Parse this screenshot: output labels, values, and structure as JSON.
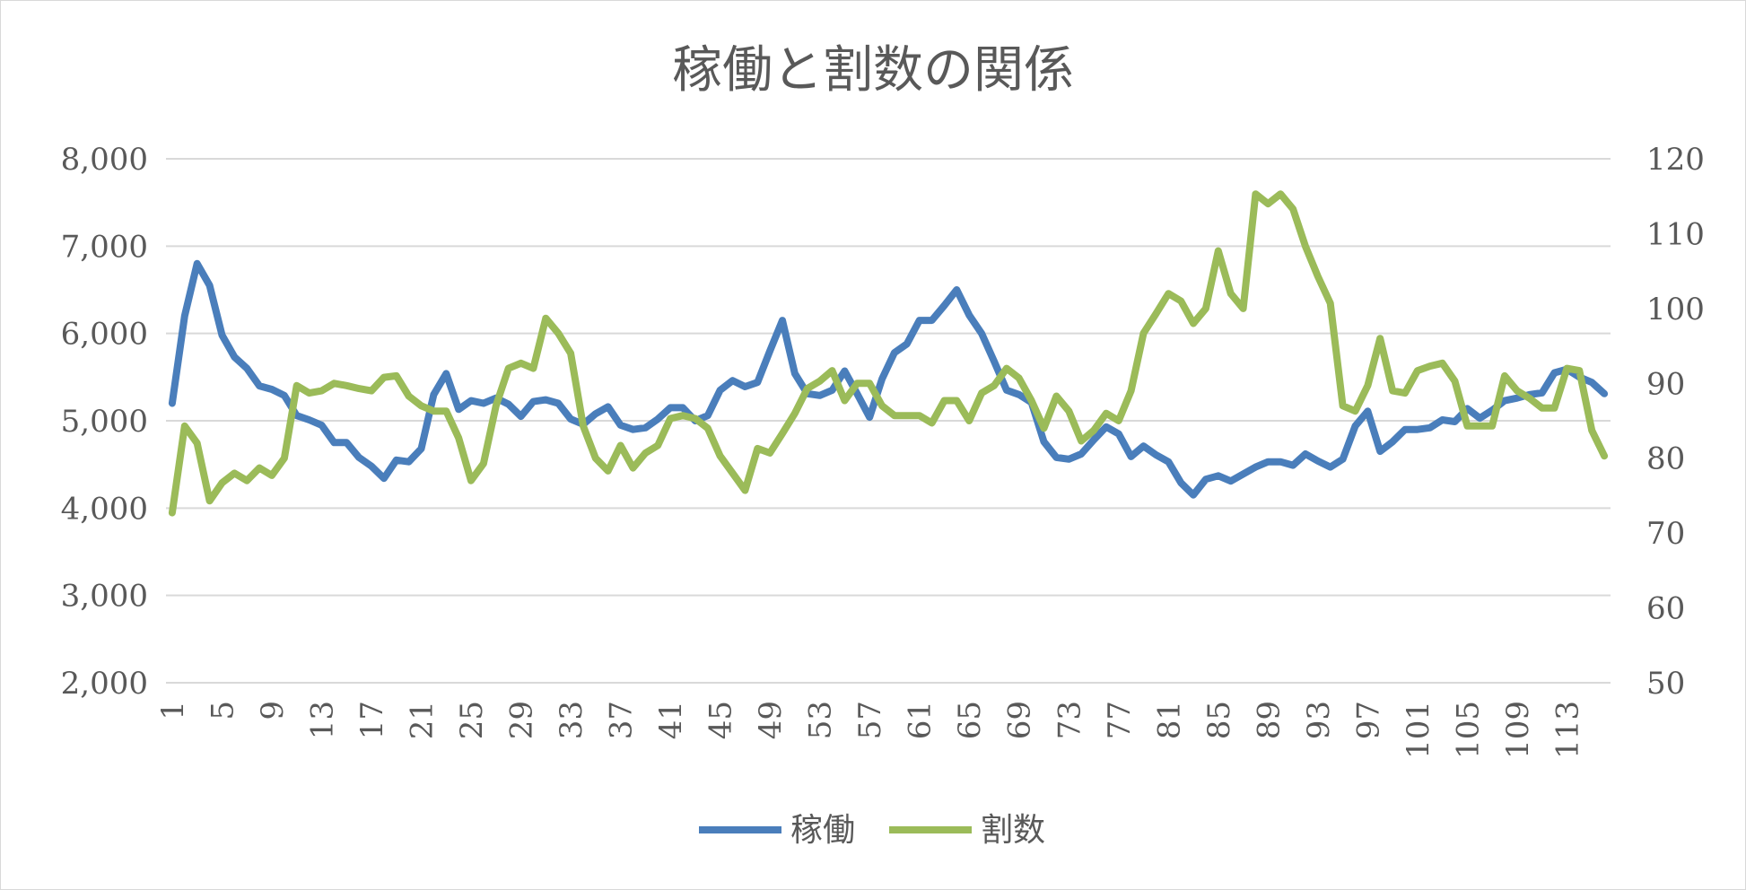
{
  "chart_data": {
    "type": "line",
    "title": "稼働と割数の関係",
    "x": [
      1,
      2,
      3,
      4,
      5,
      6,
      7,
      8,
      9,
      10,
      11,
      12,
      13,
      14,
      15,
      16,
      17,
      18,
      19,
      20,
      21,
      22,
      23,
      24,
      25,
      26,
      27,
      28,
      29,
      30,
      31,
      32,
      33,
      34,
      35,
      36,
      37,
      38,
      39,
      40,
      41,
      42,
      43,
      44,
      45,
      46,
      47,
      48,
      49,
      50,
      51,
      52,
      53,
      54,
      55,
      56,
      57,
      58,
      59,
      60,
      61,
      62,
      63,
      64,
      65,
      66,
      67,
      68,
      69,
      70,
      71,
      72,
      73,
      74,
      75,
      76,
      77,
      78,
      79,
      80,
      81,
      82,
      83,
      84,
      85,
      86,
      87,
      88,
      89,
      90,
      91,
      92,
      93,
      94,
      95,
      96,
      97,
      98,
      99,
      100,
      101,
      102,
      103,
      104,
      105,
      106,
      107,
      108,
      109,
      110,
      111,
      112,
      113,
      114,
      115,
      116
    ],
    "x_tick_labels": [
      "1",
      "5",
      "9",
      "13",
      "17",
      "21",
      "25",
      "29",
      "33",
      "37",
      "41",
      "45",
      "49",
      "53",
      "57",
      "61",
      "65",
      "69",
      "73",
      "77",
      "81",
      "85",
      "89",
      "93",
      "97",
      "101",
      "105",
      "109",
      "113"
    ],
    "y_left_range": [
      2000,
      8000
    ],
    "y_left_ticks": [
      "2,000",
      "3,000",
      "4,000",
      "5,000",
      "6,000",
      "7,000",
      "8,000"
    ],
    "y_right_range": [
      50,
      120
    ],
    "y_right_ticks": [
      "50",
      "60",
      "70",
      "80",
      "90",
      "100",
      "110",
      "120"
    ],
    "grid": true,
    "legend_position": "bottom",
    "series": [
      {
        "name": "稼働",
        "axis": "left",
        "color": "#4a7ebb",
        "values": [
          5200,
          6200,
          6800,
          6550,
          5980,
          5730,
          5600,
          5400,
          5360,
          5290,
          5060,
          5010,
          4950,
          4750,
          4750,
          4580,
          4480,
          4340,
          4550,
          4530,
          4680,
          5300,
          5540,
          5130,
          5230,
          5200,
          5260,
          5190,
          5050,
          5220,
          5240,
          5200,
          5020,
          4960,
          5080,
          5160,
          4950,
          4900,
          4920,
          5020,
          5150,
          5150,
          5000,
          5060,
          5350,
          5460,
          5390,
          5440,
          5800,
          6150,
          5540,
          5310,
          5290,
          5350,
          5570,
          5310,
          5040,
          5480,
          5780,
          5880,
          6150,
          6150,
          6320,
          6500,
          6210,
          6000,
          5680,
          5350,
          5300,
          5210,
          4760,
          4580,
          4560,
          4620,
          4780,
          4930,
          4850,
          4590,
          4710,
          4610,
          4530,
          4290,
          4150,
          4330,
          4370,
          4310,
          4390,
          4470,
          4530,
          4530,
          4490,
          4620,
          4540,
          4470,
          4560,
          4940,
          5110,
          4650,
          4760,
          4900,
          4900,
          4920,
          5010,
          4990,
          5140,
          5030,
          5120,
          5230,
          5260,
          5300,
          5320,
          5550,
          5590,
          5500,
          5440,
          5310
        ]
      },
      {
        "name": "割数",
        "axis": "right",
        "color": "#9bbb59",
        "values": [
          72.7,
          84.3,
          82.0,
          74.3,
          76.7,
          78.0,
          77.0,
          78.7,
          77.7,
          80.0,
          89.7,
          88.7,
          89.0,
          90.0,
          89.7,
          89.3,
          89.0,
          90.8,
          91.0,
          88.3,
          87.0,
          86.3,
          86.3,
          82.7,
          77.0,
          79.3,
          87.0,
          92.0,
          92.7,
          92.0,
          98.7,
          96.7,
          94.0,
          84.3,
          80.0,
          78.3,
          81.7,
          78.7,
          80.7,
          81.7,
          85.3,
          85.7,
          85.3,
          84.0,
          80.3,
          78.0,
          75.7,
          81.3,
          80.7,
          83.3,
          86.0,
          89.3,
          90.3,
          91.7,
          87.7,
          90.0,
          90.0,
          87.0,
          85.7,
          85.7,
          85.7,
          84.7,
          87.7,
          87.7,
          85.0,
          88.7,
          89.7,
          92.0,
          90.7,
          87.7,
          84.0,
          88.3,
          86.3,
          82.3,
          83.7,
          86.0,
          85.0,
          89.0,
          96.7,
          99.3,
          102.0,
          101.0,
          98.0,
          100.0,
          107.7,
          102.0,
          100.0,
          115.3,
          114.0,
          115.3,
          113.3,
          108.3,
          104.3,
          100.7,
          87.0,
          86.3,
          89.7,
          96.0,
          89.0,
          88.7,
          91.7,
          92.3,
          92.7,
          90.3,
          84.3,
          84.3,
          84.3,
          91.0,
          89.0,
          88.0,
          86.7,
          86.7,
          92.0,
          91.7,
          83.7,
          80.3
        ]
      }
    ]
  }
}
